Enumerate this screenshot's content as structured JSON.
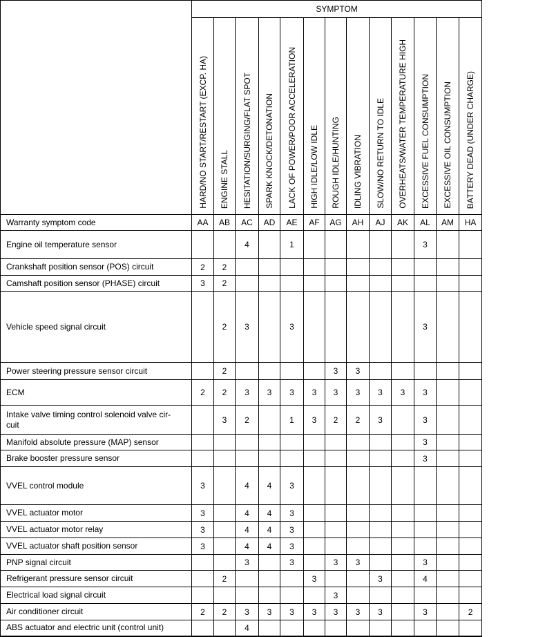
{
  "header": {
    "group_label": "SYMPTOM",
    "symptoms": [
      "HARD/NO START/RESTART (EXCP. HA)",
      "ENGINE STALL",
      "HESITATION/SURGING/FLAT SPOT",
      "SPARK KNOCK/DETONATION",
      "LACK OF POWER/POOR ACCELERATION",
      "HIGH IDLE/LOW IDLE",
      "ROUGH IDLE/HUNTING",
      "IDLING VIBRATION",
      "SLOW/NO RETURN TO IDLE",
      "OVERHEATS/WATER TEMPERATURE HIGH",
      "EXCESSIVE FUEL CONSUMPTION",
      "EXCESSIVE OIL CONSUMPTION",
      "BATTERY DEAD (UNDER CHARGE)"
    ]
  },
  "code_row": {
    "label": "Warranty symptom code",
    "codes": [
      "AA",
      "AB",
      "AC",
      "AD",
      "AE",
      "AF",
      "AG",
      "AH",
      "AJ",
      "AK",
      "AL",
      "AM",
      "HA"
    ]
  },
  "rows": [
    {
      "name": "Engine oil temperature sensor",
      "values": [
        "",
        "",
        "4",
        "",
        "1",
        "",
        "",
        "",
        "",
        "",
        "3",
        "",
        ""
      ]
    },
    {
      "name": "Crankshaft position sensor (POS) circuit",
      "values": [
        "2",
        "2",
        "",
        "",
        "",
        "",
        "",
        "",
        "",
        "",
        "",
        "",
        ""
      ]
    },
    {
      "name": "Camshaft position sensor (PHASE) circuit",
      "values": [
        "3",
        "2",
        "",
        "",
        "",
        "",
        "",
        "",
        "",
        "",
        "",
        "",
        ""
      ]
    },
    {
      "name": "Vehicle speed signal circuit",
      "values": [
        "",
        "2",
        "3",
        "",
        "3",
        "",
        "",
        "",
        "",
        "",
        "3",
        "",
        ""
      ]
    },
    {
      "name": "Power steering pressure sensor circuit",
      "values": [
        "",
        "2",
        "",
        "",
        "",
        "",
        "3",
        "3",
        "",
        "",
        "",
        "",
        ""
      ]
    },
    {
      "name": "ECM",
      "values": [
        "2",
        "2",
        "3",
        "3",
        "3",
        "3",
        "3",
        "3",
        "3",
        "3",
        "3",
        "",
        ""
      ]
    },
    {
      "name": "Intake valve timing control solenoid valve cir-\ncuit",
      "values": [
        "",
        "3",
        "2",
        "",
        "1",
        "3",
        "2",
        "2",
        "3",
        "",
        "3",
        "",
        ""
      ]
    },
    {
      "name": "Manifold absolute pressure (MAP) sensor",
      "values": [
        "",
        "",
        "",
        "",
        "",
        "",
        "",
        "",
        "",
        "",
        "3",
        "",
        ""
      ]
    },
    {
      "name": "Brake booster pressure sensor",
      "values": [
        "",
        "",
        "",
        "",
        "",
        "",
        "",
        "",
        "",
        "",
        "3",
        "",
        ""
      ]
    },
    {
      "name": "VVEL control module",
      "values": [
        "3",
        "",
        "4",
        "4",
        "3",
        "",
        "",
        "",
        "",
        "",
        "",
        "",
        ""
      ]
    },
    {
      "name": "VVEL actuator motor",
      "values": [
        "3",
        "",
        "4",
        "4",
        "3",
        "",
        "",
        "",
        "",
        "",
        "",
        "",
        ""
      ]
    },
    {
      "name": "VVEL actuator motor relay",
      "values": [
        "3",
        "",
        "4",
        "4",
        "3",
        "",
        "",
        "",
        "",
        "",
        "",
        "",
        ""
      ]
    },
    {
      "name": "VVEL actuator shaft position sensor",
      "values": [
        "3",
        "",
        "4",
        "4",
        "3",
        "",
        "",
        "",
        "",
        "",
        "",
        "",
        ""
      ]
    },
    {
      "name": "PNP signal circuit",
      "values": [
        "",
        "",
        "3",
        "",
        "3",
        "",
        "3",
        "3",
        "",
        "",
        "3",
        "",
        ""
      ]
    },
    {
      "name": "Refrigerant pressure sensor circuit",
      "values": [
        "",
        "2",
        "",
        "",
        "",
        "3",
        "",
        "",
        "3",
        "",
        "4",
        "",
        ""
      ]
    },
    {
      "name": "Electrical load signal circuit",
      "values": [
        "",
        "",
        "",
        "",
        "",
        "",
        "3",
        "",
        "",
        "",
        "",
        "",
        ""
      ]
    },
    {
      "name": "Air conditioner circuit",
      "values": [
        "2",
        "2",
        "3",
        "3",
        "3",
        "3",
        "3",
        "3",
        "3",
        "",
        "3",
        "",
        "2"
      ]
    },
    {
      "name": "ABS actuator and electric unit (control unit)",
      "values": [
        "",
        "",
        "4",
        "",
        "",
        "",
        "",
        "",
        "",
        "",
        "",
        "",
        ""
      ]
    }
  ]
}
